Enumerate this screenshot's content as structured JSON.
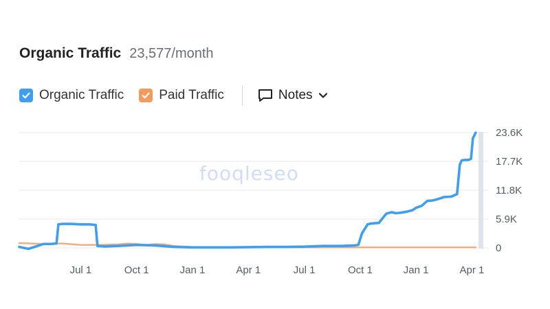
{
  "header": {
    "title": "Organic Traffic",
    "subtitle": "23,577/month"
  },
  "legend": {
    "organic_label": "Organic Traffic",
    "paid_label": "Paid Traffic",
    "notes_label": "Notes"
  },
  "watermark": "fooqleseo",
  "colors": {
    "organic": "#3f9ef0",
    "paid": "#f5a879",
    "organic_checkbox": "#3f9ef0",
    "paid_checkbox": "#f39a5f",
    "grid": "#e6e8eb"
  },
  "chart_data": {
    "type": "line",
    "ylim": [
      0,
      23600
    ],
    "y_ticks": [
      "23.6K",
      "17.7K",
      "11.8K",
      "5.9K",
      "0"
    ],
    "x_ticks": [
      "Jul 1",
      "Oct 1",
      "Jan 1",
      "Apr 1",
      "Jul 1",
      "Oct 1",
      "Jan 1",
      "Apr 1"
    ],
    "x_tick_values": [
      2.0,
      5.0,
      8.0,
      11.0,
      14.0,
      17.0,
      20.0,
      23.0
    ],
    "xlim": [
      -1.3,
      23.5
    ],
    "grid": true,
    "legend_position": "top-left",
    "series": [
      {
        "name": "Organic Traffic",
        "x": [
          -1.3,
          -0.8,
          -0.4,
          0.0,
          0.4,
          0.7,
          0.8,
          1.0,
          1.5,
          2.0,
          2.5,
          2.8,
          2.9,
          3.3,
          4.0,
          5.0,
          6.0,
          7.0,
          8.0,
          9.0,
          10.0,
          11.0,
          12.0,
          13.0,
          14.0,
          15.0,
          16.0,
          16.3,
          16.7,
          16.9,
          17.1,
          17.4,
          17.6,
          18.0,
          18.4,
          18.7,
          18.9,
          19.2,
          19.5,
          19.8,
          20.0,
          20.3,
          20.6,
          20.9,
          21.1,
          21.5,
          21.9,
          22.2,
          22.35,
          22.45,
          22.6,
          22.8,
          22.95,
          23.05,
          23.2
        ],
        "values": [
          200,
          -200,
          300,
          800,
          800,
          900,
          4800,
          4900,
          4900,
          4800,
          4800,
          4700,
          400,
          300,
          400,
          600,
          500,
          200,
          100,
          100,
          100,
          150,
          200,
          200,
          250,
          400,
          400,
          450,
          500,
          600,
          3000,
          4800,
          5000,
          5100,
          7000,
          7300,
          7100,
          7200,
          7400,
          7700,
          8200,
          8600,
          9600,
          9700,
          9900,
          10400,
          10500,
          11000,
          17000,
          17900,
          18000,
          18000,
          18200,
          22400,
          23577
        ]
      },
      {
        "name": "Paid Traffic",
        "x": [
          -1.3,
          0.0,
          1.0,
          2.0,
          3.0,
          4.0,
          4.5,
          5.0,
          5.5,
          6.0,
          6.5,
          7.0,
          7.5,
          8.0,
          9.0,
          10.0,
          11.0,
          12.0,
          13.0,
          14.0,
          15.0,
          16.0,
          17.0,
          18.0,
          19.0,
          20.0,
          21.0,
          22.0,
          23.2
        ],
        "values": [
          1000,
          800,
          900,
          600,
          600,
          700,
          900,
          800,
          600,
          800,
          700,
          400,
          300,
          200,
          150,
          100,
          100,
          100,
          100,
          100,
          100,
          100,
          100,
          100,
          100,
          100,
          100,
          100,
          100
        ]
      }
    ]
  }
}
